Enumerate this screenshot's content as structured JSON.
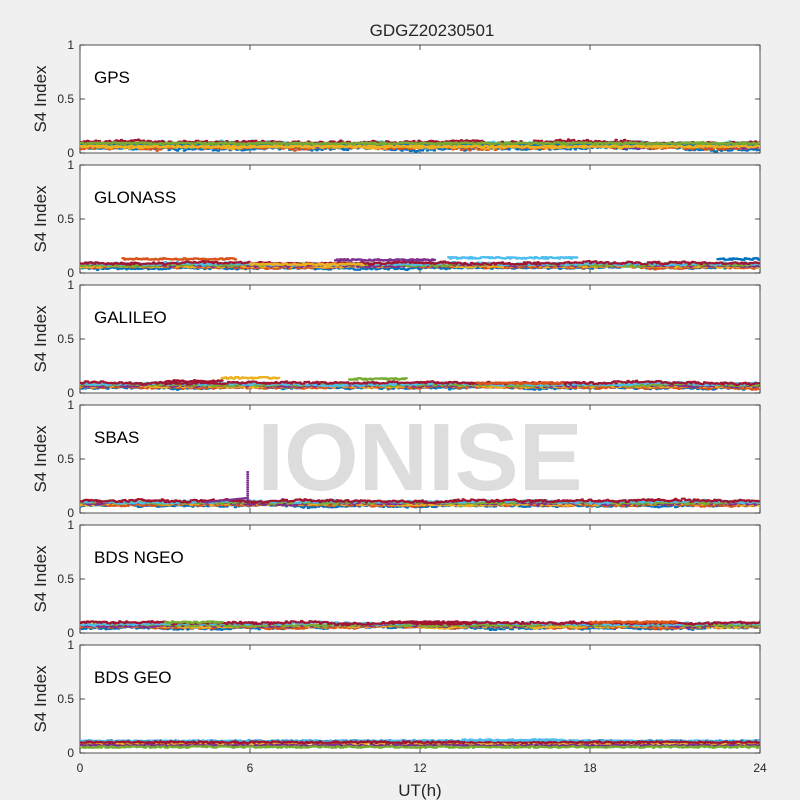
{
  "chart_data": {
    "type": "scatter",
    "title": "GDGZ20230501",
    "xlabel": "UT(h)",
    "ylabel": "S4 Index",
    "xlim": [
      0,
      24
    ],
    "ylim": [
      0,
      1
    ],
    "x_ticks": [
      "0",
      "6",
      "12",
      "18",
      "24"
    ],
    "y_ticks": [
      "0",
      "0.5",
      "1"
    ],
    "watermark": "IONISE",
    "series_colors": [
      "#0072BD",
      "#D95319",
      "#EDB120",
      "#7E2F8E",
      "#77AC30",
      "#4DBEEE",
      "#A2142F"
    ],
    "panels": [
      {
        "name": "GPS",
        "baseline": 0.07,
        "spread": 0.04,
        "tracks": [
          {
            "x": [
              0,
              24
            ],
            "y": 0.08
          },
          {
            "x": [
              0,
              24
            ],
            "y": 0.06
          },
          {
            "x": [
              0,
              24
            ],
            "y": 0.09
          }
        ]
      },
      {
        "name": "GLONASS",
        "baseline": 0.07,
        "spread": 0.03,
        "tracks": [
          {
            "x": [
              1.5,
              5.5
            ],
            "y": 0.13
          },
          {
            "x": [
              9,
              12.5
            ],
            "y": 0.12
          },
          {
            "x": [
              13,
              17.5
            ],
            "y": 0.14
          },
          {
            "x": [
              22.5,
              24
            ],
            "y": 0.13
          },
          {
            "x": [
              6,
              10
            ],
            "y": 0.08
          }
        ]
      },
      {
        "name": "GALILEO",
        "baseline": 0.07,
        "spread": 0.03,
        "tracks": [
          {
            "x": [
              5,
              7
            ],
            "y": 0.14
          },
          {
            "x": [
              9.5,
              11.5
            ],
            "y": 0.13
          },
          {
            "x": [
              3,
              5
            ],
            "y": 0.11
          },
          {
            "x": [
              14,
              17
            ],
            "y": 0.09
          }
        ]
      },
      {
        "name": "SBAS",
        "baseline": 0.09,
        "spread": 0.03,
        "tracks": [],
        "spike": {
          "x": 5.9,
          "y": [
            0.12,
            0.4
          ]
        }
      },
      {
        "name": "BDS NGEO",
        "baseline": 0.07,
        "spread": 0.03,
        "tracks": [
          {
            "x": [
              3,
              5
            ],
            "y": 0.1
          },
          {
            "x": [
              11,
              14
            ],
            "y": 0.1
          },
          {
            "x": [
              18,
              21
            ],
            "y": 0.1
          }
        ]
      },
      {
        "name": "BDS GEO",
        "baseline": 0.09,
        "spread": 0.015,
        "tracks": [
          {
            "x": [
              13.5,
              17
            ],
            "y": 0.12
          }
        ],
        "geo_levels": [
          0.11,
          0.1,
          0.085,
          0.07,
          0.055
        ]
      }
    ]
  }
}
